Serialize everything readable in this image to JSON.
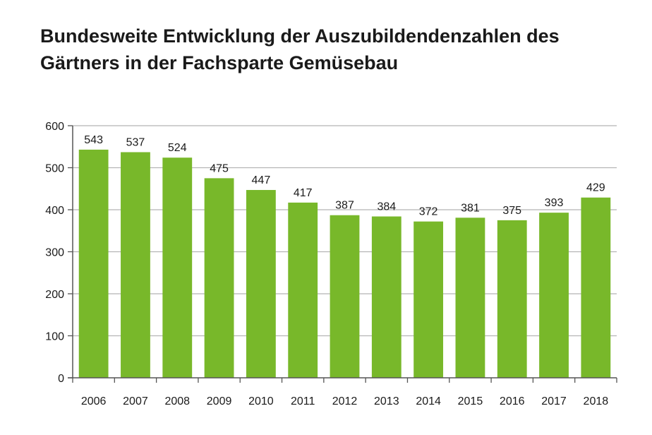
{
  "chart_data": {
    "type": "bar",
    "title": [
      "Bundesweite Entwicklung der Auszubildendenzahlen des",
      "Gärtners in der Fachsparte Gemüsebau"
    ],
    "categories": [
      "2006",
      "2007",
      "2008",
      "2009",
      "2010",
      "2011",
      "2012",
      "2013",
      "2014",
      "2015",
      "2016",
      "2017",
      "2018"
    ],
    "values": [
      543,
      537,
      524,
      475,
      447,
      417,
      387,
      384,
      372,
      381,
      375,
      393,
      429
    ],
    "ylim": [
      0,
      600
    ],
    "yticks": [
      0,
      100,
      200,
      300,
      400,
      500,
      600
    ],
    "xlabel": "",
    "ylabel": "",
    "grid": true,
    "colors": {
      "bar": "#78b82a",
      "grid": "#b5b5b5",
      "axis": "#555555",
      "text": "#1a1a1a"
    }
  }
}
